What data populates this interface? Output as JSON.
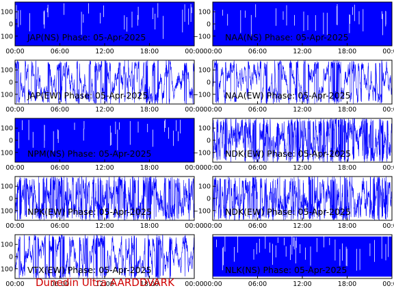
{
  "footer": "Dunedin Ultra AARDDVARK",
  "colors": {
    "trace": "#0000ff",
    "frame": "#000000",
    "background": "#ffffff",
    "footer": "#d00000"
  },
  "chart_data": [
    {
      "type": "line",
      "title": "JAP(NS) Phase: 05-Apr-2025",
      "station": "JAP",
      "component": "NS",
      "style": "saturated",
      "x_ticks": [
        "00:00",
        "06:00",
        "12:00",
        "18:00",
        "00:00"
      ],
      "x_range_hours": [
        0,
        24
      ],
      "y_ticks": [
        100,
        0,
        -100
      ],
      "ylim": [
        -180,
        180
      ]
    },
    {
      "type": "line",
      "title": "NAA(NS) Phase: 05-Apr-2025",
      "station": "NAA",
      "component": "NS",
      "style": "saturated",
      "x_ticks": [
        "00:00",
        "06:00",
        "12:00",
        "18:00",
        "00:00"
      ],
      "x_range_hours": [
        0,
        24
      ],
      "y_ticks": [
        100,
        0,
        -100
      ],
      "ylim": [
        -180,
        180
      ]
    },
    {
      "type": "line",
      "title": "JAP(EW) Phase: 05-Apr-2025",
      "station": "JAP",
      "component": "EW",
      "style": "noisy",
      "x_ticks": [
        "00:00",
        "06:00",
        "12:00",
        "18:00",
        "00:00"
      ],
      "x_range_hours": [
        0,
        24
      ],
      "y_ticks": [
        100,
        0,
        -100
      ],
      "ylim": [
        -180,
        180
      ]
    },
    {
      "type": "line",
      "title": "NAA(EW) Phase: 05-Apr-2025",
      "station": "NAA",
      "component": "EW",
      "style": "noisy",
      "x_ticks": [
        "00:00",
        "06:00",
        "12:00",
        "18:00",
        "00:00"
      ],
      "x_range_hours": [
        0,
        24
      ],
      "y_ticks": [
        100,
        0,
        -100
      ],
      "ylim": [
        -180,
        180
      ]
    },
    {
      "type": "line",
      "title": "NPM(NS) Phase: 05-Apr-2025",
      "station": "NPM",
      "component": "NS",
      "style": "saturated",
      "x_ticks": [
        "00:00",
        "06:00",
        "12:00",
        "18:00",
        "00:00"
      ],
      "x_range_hours": [
        0,
        24
      ],
      "y_ticks": [
        100,
        0,
        -100
      ],
      "ylim": [
        -180,
        180
      ]
    },
    {
      "type": "line",
      "title": "NDK(EW) Phase: 05-Apr-2025",
      "station": "NDK",
      "component": "EW",
      "style": "dense",
      "x_ticks": [
        "00:00",
        "06:00",
        "12:00",
        "18:00",
        "00:00"
      ],
      "x_range_hours": [
        0,
        24
      ],
      "y_ticks": [
        100,
        0,
        -100
      ],
      "ylim": [
        -180,
        180
      ]
    },
    {
      "type": "line",
      "title": "NPK(EW) Phase: 05-Apr-2025",
      "station": "NPK",
      "component": "EW",
      "style": "dense",
      "x_ticks": [
        "00:00",
        "06:00",
        "12:00",
        "18:00",
        "00:00"
      ],
      "x_range_hours": [
        0,
        24
      ],
      "y_ticks": [
        100,
        0,
        -100
      ],
      "ylim": [
        -180,
        180
      ]
    },
    {
      "type": "line",
      "title": "NDK(EW) Phase: 05-Apr-2025",
      "station": "NDK",
      "component": "EW",
      "style": "dense",
      "x_ticks": [
        "00:00",
        "06:00",
        "12:00",
        "18:00",
        "00:00"
      ],
      "x_range_hours": [
        0,
        24
      ],
      "y_ticks": [
        100,
        0,
        -100
      ],
      "ylim": [
        -180,
        180
      ]
    },
    {
      "type": "line",
      "title": "VTX(EW) Phase: 05-Apr-2025",
      "station": "VTX",
      "component": "EW",
      "style": "noisy",
      "x_ticks": [
        "00:00",
        "06:00",
        "12:00",
        "18:00",
        "00:00"
      ],
      "x_range_hours": [
        0,
        24
      ],
      "y_ticks": [
        100,
        0,
        -100
      ],
      "ylim": [
        -180,
        180
      ]
    },
    {
      "type": "line",
      "title": "NLK(NS) Phase: 05-Apr-2025",
      "station": "NLK",
      "component": "NS",
      "style": "band",
      "x_ticks": [
        "00:00",
        "06:00",
        "12:00",
        "18:00",
        "00:00"
      ],
      "x_range_hours": [
        0,
        24
      ],
      "y_ticks": [],
      "ylim": [
        -180,
        180
      ]
    }
  ]
}
